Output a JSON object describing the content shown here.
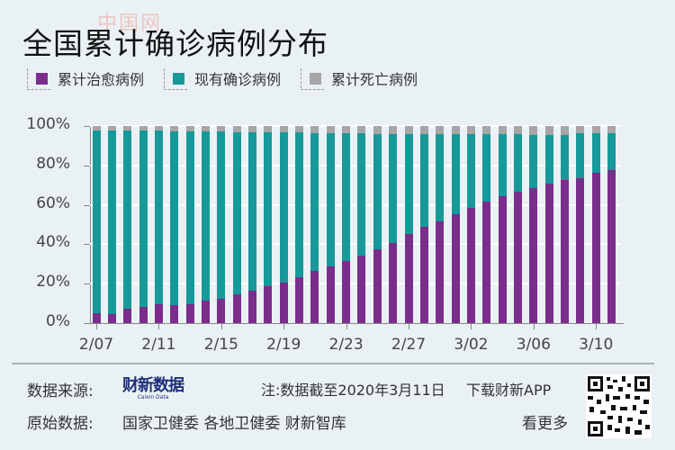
{
  "header": {
    "title": "全国累计确诊病例分布",
    "watermark": "中国网"
  },
  "legend": [
    {
      "label": "累计治愈病例",
      "color": "#7b2d8b"
    },
    {
      "label": "现有确诊病例",
      "color": "#17999a"
    },
    {
      "label": "累计死亡病例",
      "color": "#a6a6a6"
    }
  ],
  "chart_data": {
    "type": "bar",
    "stacked": true,
    "title": "全国累计确诊病例分布",
    "xlabel": "",
    "ylabel": "",
    "ylim": [
      0,
      100
    ],
    "yticks": [
      "0%",
      "20%",
      "40%",
      "60%",
      "80%",
      "100%"
    ],
    "xtick_labels": [
      "2/07",
      "2/11",
      "2/15",
      "2/19",
      "2/23",
      "2/27",
      "3/02",
      "3/06",
      "3/10"
    ],
    "grid": true,
    "legend_position": "top",
    "categories": [
      "2/07",
      "2/08",
      "2/09",
      "2/10",
      "2/11",
      "2/12",
      "2/13",
      "2/14",
      "2/15",
      "2/16",
      "2/17",
      "2/18",
      "2/19",
      "2/20",
      "2/21",
      "2/22",
      "2/23",
      "2/24",
      "2/25",
      "2/26",
      "2/27",
      "2/28",
      "2/29",
      "3/01",
      "3/02",
      "3/03",
      "3/04",
      "3/05",
      "3/06",
      "3/07",
      "3/08",
      "3/09",
      "3/10",
      "3/11"
    ],
    "series": [
      {
        "name": "累计治愈病例",
        "color": "#7b2d8b",
        "values": [
          5.0,
          4.6,
          7.3,
          8.2,
          9.6,
          9.1,
          9.8,
          11.4,
          12.3,
          14.6,
          16.4,
          18.7,
          20.5,
          23.3,
          26.5,
          28.8,
          31.5,
          34.2,
          37.4,
          40.6,
          45.2,
          48.9,
          51.6,
          55.3,
          58.4,
          61.6,
          64.4,
          66.7,
          68.5,
          70.8,
          72.6,
          73.5,
          76.3,
          77.6
        ]
      },
      {
        "name": "现有确诊病例",
        "color": "#17999a",
        "values": [
          92.8,
          93.2,
          90.4,
          89.4,
          87.9,
          88.3,
          87.5,
          85.8,
          84.8,
          82.4,
          80.5,
          78.1,
          76.2,
          73.3,
          70.0,
          67.6,
          64.8,
          62.0,
          58.7,
          55.5,
          50.8,
          47.0,
          44.3,
          40.5,
          37.4,
          34.1,
          31.3,
          29.0,
          27.1,
          24.8,
          23.0,
          22.9,
          20.1,
          18.8
        ]
      },
      {
        "name": "累计死亡病例",
        "color": "#a6a6a6",
        "values": [
          2.2,
          2.2,
          2.3,
          2.4,
          2.5,
          2.6,
          2.7,
          2.8,
          2.9,
          3.0,
          3.1,
          3.2,
          3.3,
          3.4,
          3.5,
          3.6,
          3.7,
          3.8,
          3.9,
          3.9,
          4.0,
          4.1,
          4.1,
          4.2,
          4.2,
          4.3,
          4.3,
          4.3,
          4.4,
          4.4,
          4.4,
          3.6,
          3.6,
          3.6
        ]
      }
    ]
  },
  "footer": {
    "source_label": "数据来源:",
    "brand_cn": "财新数据",
    "brand_en": "Caixin Data",
    "note": "注:数据截至2020年3月11日",
    "download": "下载财新APP",
    "origin_label": "原始数据:",
    "origin_sources": "国家卫健委 各地卫健委 财新智库",
    "see_more": "看更多"
  }
}
